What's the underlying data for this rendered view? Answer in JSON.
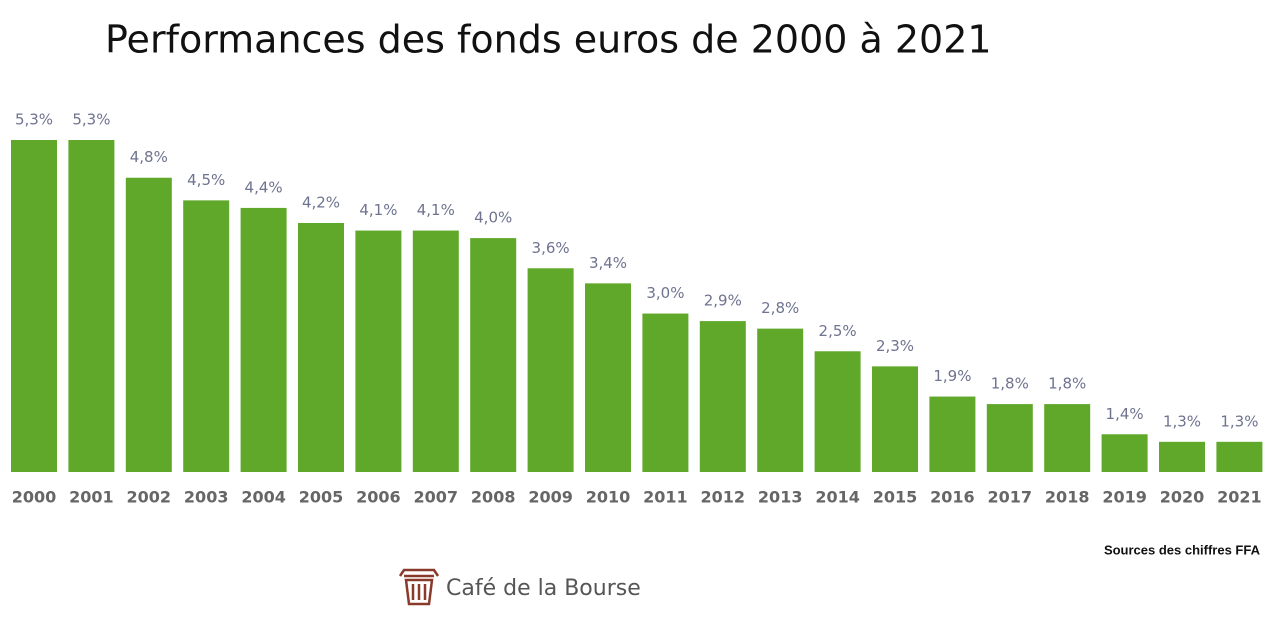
{
  "chart_data": {
    "type": "bar",
    "title": "Performances des fonds euros de 2000 à 2021",
    "categories": [
      "2000",
      "2001",
      "2002",
      "2003",
      "2004",
      "2005",
      "2006",
      "2007",
      "2008",
      "2009",
      "2010",
      "2011",
      "2012",
      "2013",
      "2014",
      "2015",
      "2016",
      "2017",
      "2018",
      "2019",
      "2020",
      "2021"
    ],
    "values": [
      5.3,
      5.3,
      4.8,
      4.5,
      4.4,
      4.2,
      4.1,
      4.1,
      4.0,
      3.6,
      3.4,
      3.0,
      2.9,
      2.8,
      2.5,
      2.3,
      1.9,
      1.8,
      1.8,
      1.4,
      1.3,
      1.3
    ],
    "value_labels": [
      "5,3%",
      "5,3%",
      "4,8%",
      "4,5%",
      "4,4%",
      "4,2%",
      "4,1%",
      "4,1%",
      "4,0%",
      "3,6%",
      "3,4%",
      "3,0%",
      "2,9%",
      "2,8%",
      "2,5%",
      "2,3%",
      "1,9%",
      "1,8%",
      "1,8%",
      "1,4%",
      "1,3%",
      "1,3%"
    ],
    "color": "#5fa82a",
    "ylim": [
      0.9,
      5.3
    ],
    "source": "Sources des chiffres FFA",
    "logo": "Café de la Bourse"
  }
}
